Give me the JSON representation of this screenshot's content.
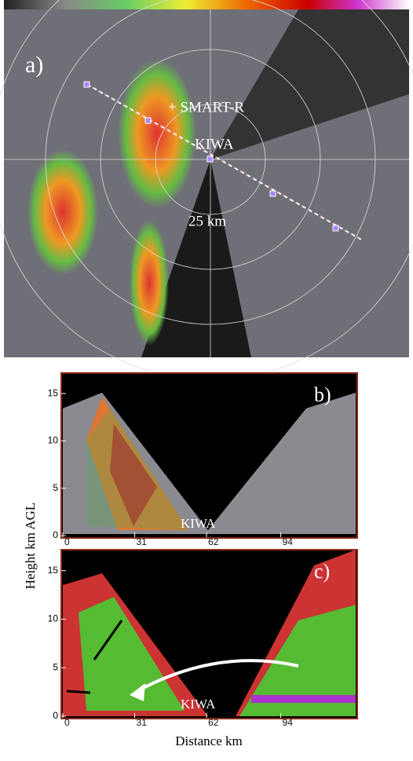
{
  "panel_a": {
    "label": "a)",
    "site_1": "+ SMART-R",
    "site_2": "KIWA",
    "range_label": "25 km"
  },
  "panel_b": {
    "label": "b)",
    "site": "KIWA"
  },
  "panel_c": {
    "label": "c)",
    "site": "KIWA"
  },
  "axes": {
    "y_label": "Height km AGL",
    "x_label": "Distance km",
    "ylim": [
      0,
      17
    ],
    "yticks": [
      0,
      5,
      10,
      15
    ],
    "xlim": [
      0,
      127
    ],
    "xticks": [
      0,
      31,
      62,
      94
    ]
  }
}
